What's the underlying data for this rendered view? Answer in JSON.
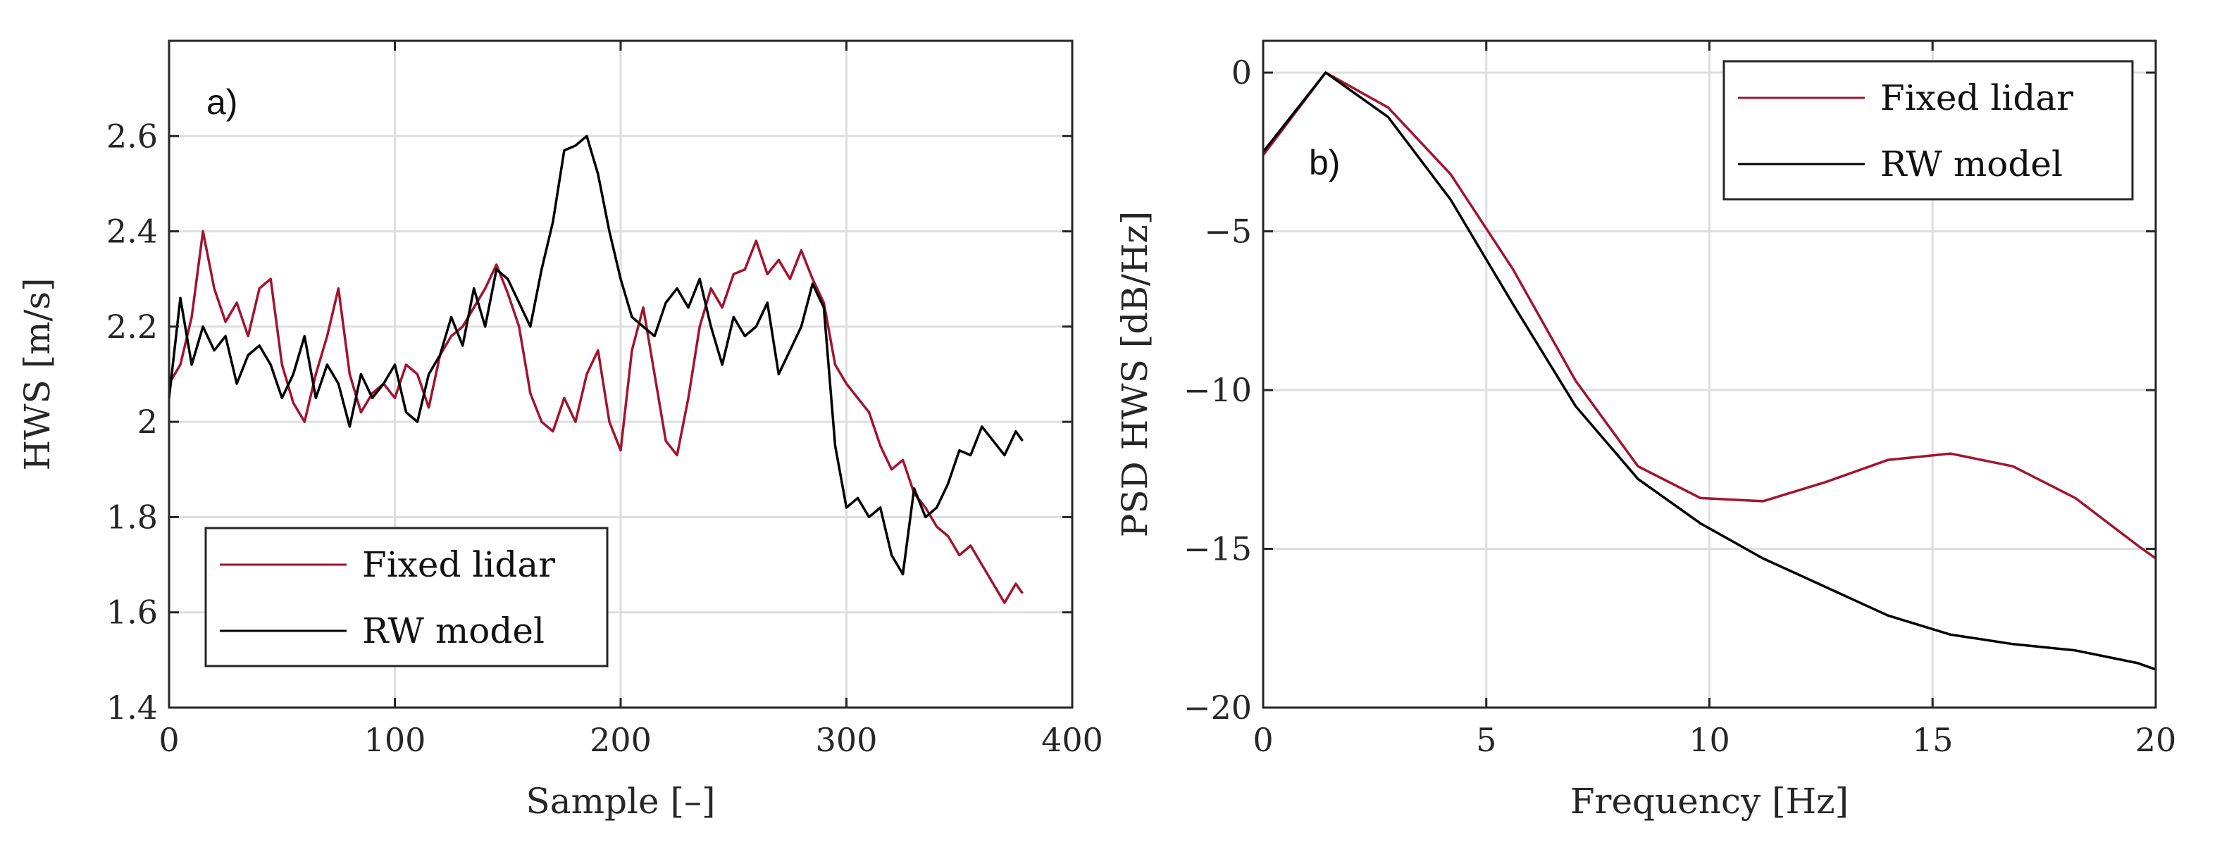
{
  "colors": {
    "fixed_lidar": "#a2142f",
    "rw_model": "#000000"
  },
  "chart_data": [
    {
      "type": "line",
      "panel_label": "a)",
      "xlabel": "Sample [–]",
      "ylabel": "HWS [m/s]",
      "xlim": [
        0,
        400
      ],
      "ylim": [
        1.4,
        2.8
      ],
      "xticks": [
        0,
        100,
        200,
        300,
        400
      ],
      "xtick_labels": [
        "0",
        "100",
        "200",
        "300",
        "400"
      ],
      "yticks": [
        1.4,
        1.6,
        1.8,
        2.0,
        2.2,
        2.4,
        2.6
      ],
      "ytick_labels": [
        "1.4",
        "1.6",
        "1.8",
        "2",
        "2.2",
        "2.4",
        "2.6"
      ],
      "grid": true,
      "legend_position": "bottom-left",
      "series": [
        {
          "name": "Fixed lidar",
          "color": "#a2142f",
          "x": [
            0,
            5,
            10,
            15,
            20,
            25,
            30,
            35,
            40,
            45,
            50,
            55,
            60,
            65,
            70,
            75,
            80,
            85,
            90,
            95,
            100,
            105,
            110,
            115,
            120,
            125,
            130,
            135,
            140,
            145,
            150,
            155,
            160,
            165,
            170,
            175,
            180,
            185,
            190,
            195,
            200,
            205,
            210,
            215,
            220,
            225,
            230,
            235,
            240,
            245,
            250,
            255,
            260,
            265,
            270,
            275,
            280,
            285,
            290,
            295,
            300,
            305,
            310,
            315,
            320,
            325,
            330,
            335,
            340,
            345,
            350,
            355,
            360,
            365,
            370,
            375,
            378
          ],
          "y": [
            2.08,
            2.12,
            2.22,
            2.4,
            2.28,
            2.21,
            2.25,
            2.18,
            2.28,
            2.3,
            2.12,
            2.04,
            2.0,
            2.1,
            2.18,
            2.28,
            2.1,
            2.02,
            2.06,
            2.08,
            2.05,
            2.12,
            2.1,
            2.03,
            2.14,
            2.18,
            2.2,
            2.24,
            2.28,
            2.33,
            2.27,
            2.2,
            2.06,
            2.0,
            1.98,
            2.05,
            2.0,
            2.1,
            2.15,
            2.0,
            1.94,
            2.15,
            2.24,
            2.1,
            1.96,
            1.93,
            2.05,
            2.2,
            2.28,
            2.24,
            2.31,
            2.32,
            2.38,
            2.31,
            2.34,
            2.3,
            2.36,
            2.3,
            2.25,
            2.12,
            2.08,
            2.05,
            2.02,
            1.95,
            1.9,
            1.92,
            1.85,
            1.82,
            1.78,
            1.76,
            1.72,
            1.74,
            1.7,
            1.66,
            1.62,
            1.66,
            1.64
          ]
        },
        {
          "name": "RW model",
          "color": "#000000",
          "x": [
            0,
            5,
            10,
            15,
            20,
            25,
            30,
            35,
            40,
            45,
            50,
            55,
            60,
            65,
            70,
            75,
            80,
            85,
            90,
            95,
            100,
            105,
            110,
            115,
            120,
            125,
            130,
            135,
            140,
            145,
            150,
            155,
            160,
            165,
            170,
            175,
            180,
            185,
            190,
            195,
            200,
            205,
            210,
            215,
            220,
            225,
            230,
            235,
            240,
            245,
            250,
            255,
            260,
            265,
            270,
            275,
            280,
            285,
            290,
            295,
            300,
            305,
            310,
            315,
            320,
            325,
            330,
            335,
            340,
            345,
            350,
            355,
            360,
            365,
            370,
            375,
            378
          ],
          "y": [
            2.05,
            2.26,
            2.12,
            2.2,
            2.15,
            2.18,
            2.08,
            2.14,
            2.16,
            2.12,
            2.05,
            2.1,
            2.18,
            2.05,
            2.12,
            2.08,
            1.99,
            2.1,
            2.05,
            2.08,
            2.12,
            2.02,
            2.0,
            2.1,
            2.14,
            2.22,
            2.16,
            2.28,
            2.2,
            2.32,
            2.3,
            2.25,
            2.2,
            2.32,
            2.42,
            2.57,
            2.58,
            2.6,
            2.52,
            2.4,
            2.3,
            2.22,
            2.2,
            2.18,
            2.25,
            2.28,
            2.24,
            2.3,
            2.2,
            2.12,
            2.22,
            2.18,
            2.2,
            2.25,
            2.1,
            2.15,
            2.2,
            2.29,
            2.24,
            1.95,
            1.82,
            1.84,
            1.8,
            1.82,
            1.72,
            1.68,
            1.86,
            1.8,
            1.82,
            1.87,
            1.94,
            1.93,
            1.99,
            1.96,
            1.93,
            1.98,
            1.96
          ]
        }
      ]
    },
    {
      "type": "line",
      "panel_label": "b)",
      "xlabel": "Frequency [Hz]",
      "ylabel": "PSD HWS [dB/Hz]",
      "xlim": [
        0,
        20
      ],
      "ylim": [
        -20,
        1
      ],
      "xticks": [
        0,
        5,
        10,
        15,
        20
      ],
      "xtick_labels": [
        "0",
        "5",
        "10",
        "15",
        "20"
      ],
      "yticks": [
        0,
        -5,
        -10,
        -15,
        -20
      ],
      "ytick_labels": [
        "0",
        "−5",
        "−10",
        "−15",
        "−20"
      ],
      "grid": true,
      "legend_position": "top-right",
      "series": [
        {
          "name": "Fixed lidar",
          "color": "#a2142f",
          "x": [
            0,
            1.4,
            2.8,
            4.2,
            5.6,
            7.0,
            8.4,
            9.8,
            11.2,
            12.6,
            14.0,
            15.4,
            16.8,
            18.2,
            19.6,
            20
          ],
          "y": [
            -2.6,
            0,
            -1.1,
            -3.2,
            -6.2,
            -9.7,
            -12.4,
            -13.4,
            -13.5,
            -12.9,
            -12.2,
            -12.0,
            -12.4,
            -13.4,
            -14.9,
            -15.3
          ]
        },
        {
          "name": "RW model",
          "color": "#000000",
          "x": [
            0,
            1.4,
            2.8,
            4.2,
            5.6,
            7.0,
            8.4,
            9.8,
            11.2,
            12.6,
            14.0,
            15.4,
            16.8,
            18.2,
            19.6,
            20
          ],
          "y": [
            -2.5,
            0,
            -1.4,
            -4.0,
            -7.3,
            -10.5,
            -12.8,
            -14.2,
            -15.3,
            -16.2,
            -17.1,
            -17.7,
            -18.0,
            -18.2,
            -18.6,
            -18.8
          ]
        }
      ]
    }
  ]
}
